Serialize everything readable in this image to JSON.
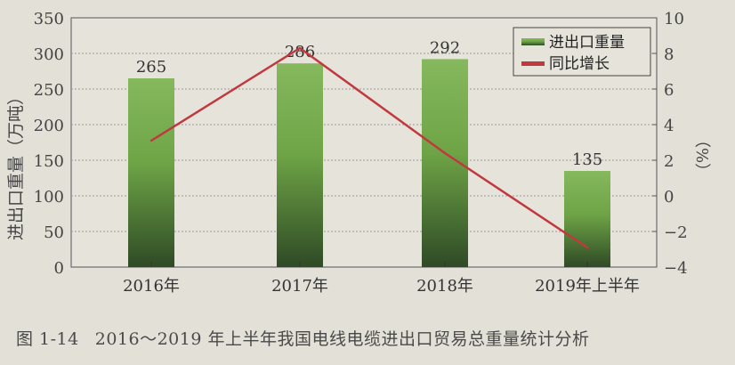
{
  "chart_data": {
    "type": "bar+line",
    "categories": [
      "2016年",
      "2017年",
      "2018年",
      "2019年上半年"
    ],
    "series": [
      {
        "name": "进出口重量",
        "type": "bar",
        "axis": "left",
        "values": [
          265,
          286,
          292,
          135
        ],
        "data_labels": [
          "265",
          "286",
          "292",
          "135"
        ],
        "color": "#5e8f3e"
      },
      {
        "name": "同比增长",
        "type": "line",
        "axis": "right",
        "values": [
          3.1,
          8.3,
          2.4,
          -2.9
        ],
        "color": "#c0393f"
      }
    ],
    "ylabel": "进出口重量（万吨）",
    "y2label": "（%）",
    "ylim": [
      0,
      350
    ],
    "yticks": [
      "0",
      "50",
      "100",
      "150",
      "200",
      "250",
      "300",
      "350"
    ],
    "y2lim": [
      -4,
      10
    ],
    "y2ticks": [
      "-4",
      "-2",
      "0",
      "2",
      "4",
      "6",
      "8",
      "10"
    ],
    "grid": true,
    "legend": "top-right"
  },
  "caption": {
    "number": "图 1-14",
    "text": "2016～2019 年上半年我国电线电缆进出口贸易总重量统计分析"
  }
}
